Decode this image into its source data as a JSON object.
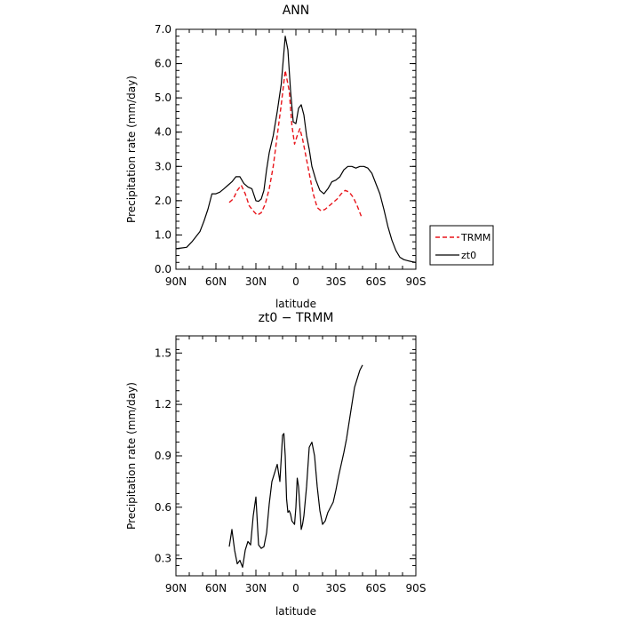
{
  "chart_data": [
    {
      "type": "line",
      "title": "ANN",
      "xlabel": "latitude",
      "ylabel": "Precipitation rate (mm/day)",
      "xlim": [
        -90,
        90
      ],
      "ylim": [
        0,
        7
      ],
      "x_ticks": [
        -90,
        -60,
        -30,
        0,
        30,
        60,
        90
      ],
      "x_tick_labels": [
        "90N",
        "60N",
        "30N",
        "0",
        "30S",
        "60S",
        "90S"
      ],
      "y_ticks": [
        0,
        1,
        2,
        3,
        4,
        5,
        6,
        7
      ],
      "y_tick_labels": [
        "0.0",
        "1.0",
        "2.0",
        "3.0",
        "4.0",
        "5.0",
        "6.0",
        "7.0"
      ],
      "legend": {
        "position": "right",
        "entries": [
          {
            "label": "TRMM",
            "style": "dashed",
            "color": "#e8151b"
          },
          {
            "label": "zt0",
            "style": "solid",
            "color": "#000000"
          }
        ]
      },
      "series": [
        {
          "name": "TRMM",
          "color": "#e8151b",
          "style": "dashed",
          "x": [
            -50,
            -47,
            -44,
            -41,
            -38,
            -35,
            -32,
            -29,
            -26,
            -23,
            -20,
            -17,
            -14,
            -11,
            -8,
            -5,
            -3,
            -1,
            1,
            3,
            5,
            7,
            10,
            13,
            16,
            19,
            22,
            25,
            28,
            31,
            34,
            37,
            40,
            43,
            46,
            49
          ],
          "y": [
            1.95,
            2.05,
            2.3,
            2.45,
            2.2,
            1.85,
            1.7,
            1.58,
            1.65,
            1.9,
            2.35,
            3.0,
            3.9,
            4.8,
            5.8,
            5.2,
            4.2,
            3.65,
            3.9,
            4.1,
            3.8,
            3.4,
            2.8,
            2.2,
            1.8,
            1.7,
            1.75,
            1.85,
            1.95,
            2.05,
            2.2,
            2.3,
            2.25,
            2.1,
            1.85,
            1.55
          ]
        },
        {
          "name": "zt0",
          "color": "#000000",
          "style": "solid",
          "x": [
            -90,
            -86,
            -82,
            -78,
            -75,
            -72,
            -69,
            -66,
            -63,
            -60,
            -57,
            -54,
            -51,
            -48,
            -45,
            -42,
            -39,
            -36,
            -33,
            -30,
            -28,
            -26,
            -24,
            -22,
            -20,
            -17,
            -14,
            -11,
            -8,
            -6,
            -4,
            -2,
            0,
            2,
            4,
            6,
            8,
            10,
            12,
            15,
            18,
            21,
            24,
            27,
            30,
            33,
            36,
            39,
            42,
            45,
            48,
            51,
            54,
            57,
            60,
            63,
            66,
            69,
            72,
            75,
            78,
            81,
            84,
            87,
            90
          ],
          "y": [
            0.6,
            0.62,
            0.64,
            0.8,
            0.95,
            1.1,
            1.4,
            1.75,
            2.2,
            2.2,
            2.25,
            2.35,
            2.45,
            2.55,
            2.7,
            2.7,
            2.5,
            2.4,
            2.35,
            2.0,
            1.98,
            2.05,
            2.3,
            2.9,
            3.4,
            3.9,
            4.6,
            5.4,
            6.8,
            6.4,
            5.2,
            4.3,
            4.25,
            4.7,
            4.8,
            4.5,
            3.9,
            3.5,
            3.0,
            2.6,
            2.3,
            2.2,
            2.35,
            2.55,
            2.6,
            2.7,
            2.9,
            3.0,
            3.0,
            2.95,
            3.0,
            3.0,
            2.95,
            2.8,
            2.5,
            2.2,
            1.75,
            1.25,
            0.85,
            0.55,
            0.35,
            0.28,
            0.25,
            0.22,
            0.2
          ]
        }
      ]
    },
    {
      "type": "line",
      "title": "zt0 − TRMM",
      "xlabel": "latitude",
      "ylabel": "Precipitation rate (mm/day)",
      "xlim": [
        -90,
        90
      ],
      "ylim": [
        0.2,
        1.6
      ],
      "x_ticks": [
        -90,
        -60,
        -30,
        0,
        30,
        60,
        90
      ],
      "x_tick_labels": [
        "90N",
        "60N",
        "30N",
        "0",
        "30S",
        "60S",
        "90S"
      ],
      "y_ticks": [
        0.3,
        0.6,
        0.9,
        1.2,
        1.5
      ],
      "y_tick_labels": [
        "0.3",
        "0.6",
        "0.9",
        "1.2",
        "1.5"
      ],
      "series": [
        {
          "color": "#000000",
          "style": "solid",
          "x": [
            -50,
            -48,
            -46,
            -44,
            -42,
            -40,
            -38,
            -36,
            -34,
            -32,
            -30,
            -28,
            -26,
            -24,
            -22,
            -20,
            -18,
            -16,
            -14,
            -12,
            -10,
            -9,
            -8,
            -7,
            -6,
            -5,
            -4,
            -3,
            -1,
            0,
            1,
            2,
            3,
            4,
            5,
            6,
            8,
            10,
            12,
            14,
            16,
            18,
            20,
            22,
            24,
            26,
            28,
            30,
            32,
            34,
            36,
            38,
            40,
            42,
            44,
            46,
            48,
            50
          ],
          "y": [
            0.37,
            0.47,
            0.35,
            0.27,
            0.29,
            0.25,
            0.35,
            0.4,
            0.38,
            0.55,
            0.66,
            0.38,
            0.36,
            0.37,
            0.45,
            0.62,
            0.75,
            0.8,
            0.85,
            0.75,
            1.02,
            1.03,
            0.9,
            0.65,
            0.57,
            0.58,
            0.56,
            0.52,
            0.5,
            0.6,
            0.77,
            0.72,
            0.6,
            0.47,
            0.5,
            0.55,
            0.72,
            0.95,
            0.98,
            0.9,
            0.72,
            0.58,
            0.5,
            0.52,
            0.57,
            0.6,
            0.63,
            0.7,
            0.78,
            0.85,
            0.92,
            1.0,
            1.1,
            1.2,
            1.3,
            1.35,
            1.4,
            1.43
          ]
        }
      ]
    }
  ]
}
